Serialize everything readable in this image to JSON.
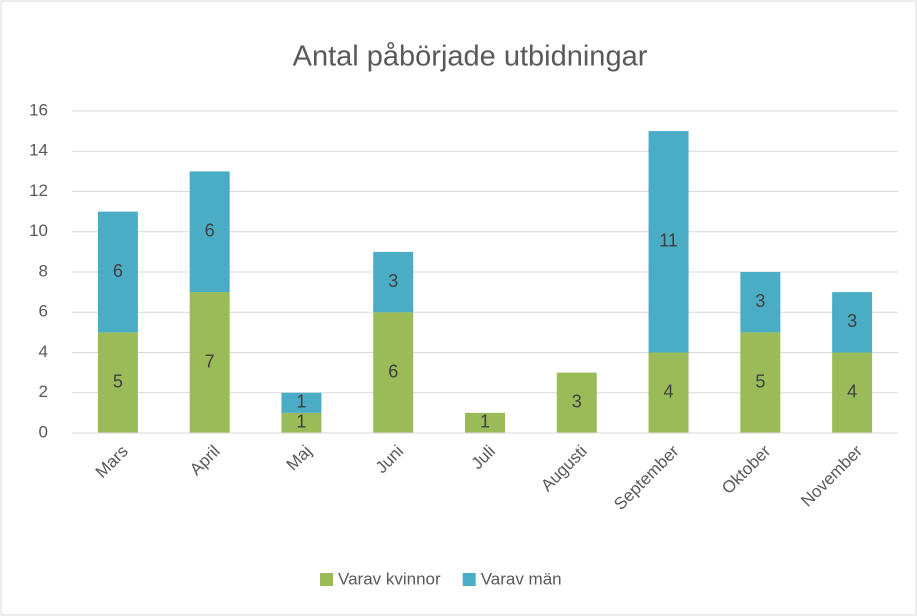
{
  "chart_data": {
    "type": "stacked_bar",
    "title": "Antal påbörjade utbidningar",
    "categories": [
      "Mars",
      "April",
      "Maj",
      "Juni",
      "Juli",
      "Augusti",
      "September",
      "Oktober",
      "November"
    ],
    "series": [
      {
        "name": "Varav kvinnor",
        "color": "#9bbb59",
        "values": [
          5,
          7,
          1,
          6,
          1,
          3,
          4,
          5,
          4
        ]
      },
      {
        "name": "Varav män",
        "color": "#4bacc6",
        "values": [
          6,
          6,
          1,
          3,
          null,
          null,
          11,
          3,
          3
        ]
      }
    ],
    "ylim": [
      0,
      16
    ],
    "yticks": [
      0,
      2,
      4,
      6,
      8,
      10,
      12,
      14,
      16
    ],
    "grid": true,
    "legend": "bottom"
  }
}
